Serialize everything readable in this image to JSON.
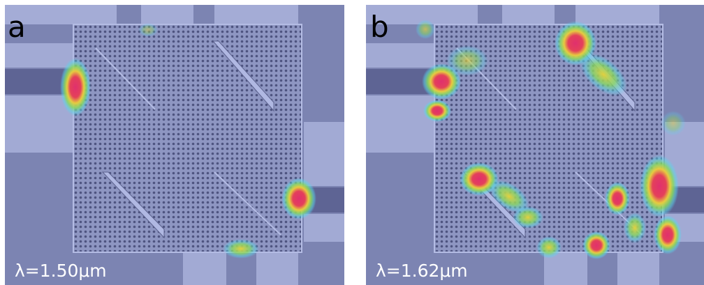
{
  "panels": [
    {
      "label": "a",
      "caption": "λ=1.50μm"
    },
    {
      "label": "b",
      "caption": "λ=1.62μm"
    }
  ]
}
